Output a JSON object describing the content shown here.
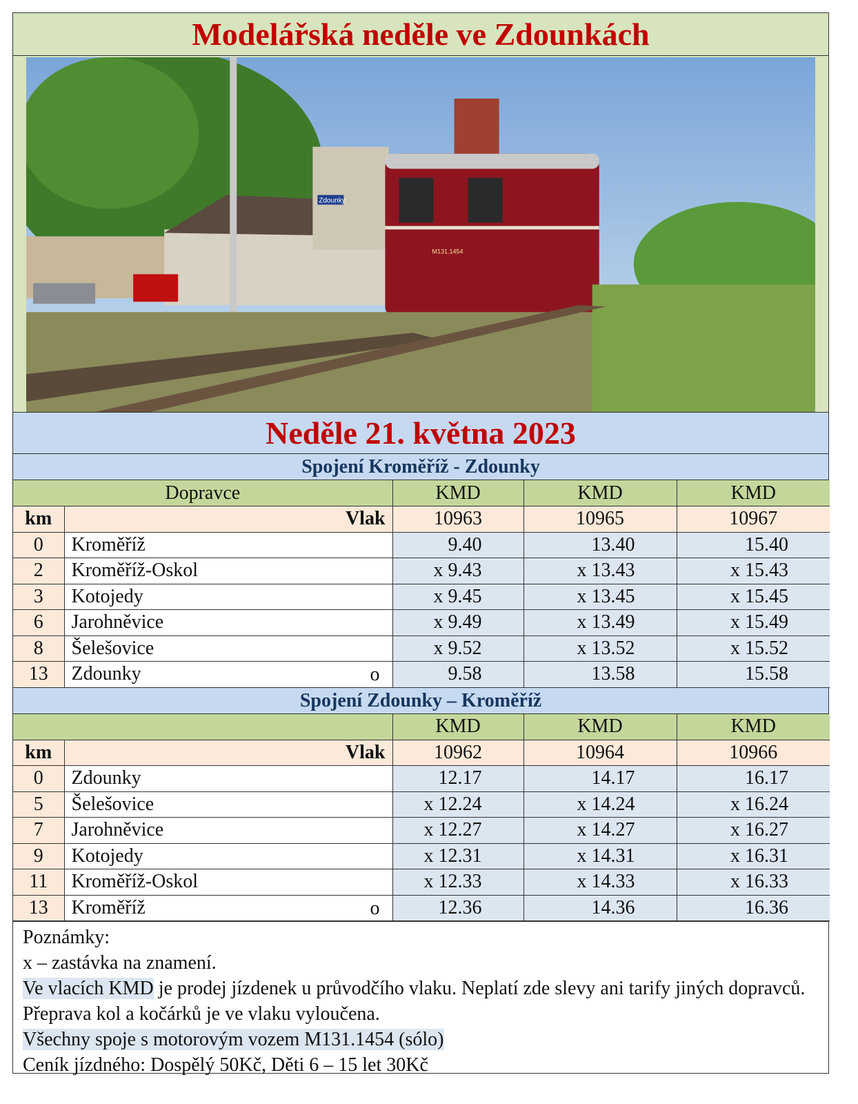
{
  "title": "Modelářská neděle ve Zdounkách",
  "photo": {
    "station_sign": "Zdounky",
    "locomotive_label": "M131.1454"
  },
  "date": "Neděle 21. května 2023",
  "colors": {
    "title_red": "#c00000",
    "subtitle_navy": "#17365d",
    "green": "#c4d79b",
    "peach": "#fde9d9",
    "blue": "#c6d9f1"
  },
  "section1": {
    "title": "Spojení Kroměříž - Zdounky",
    "carrier_label": "Dopravce",
    "km_label": "km",
    "train_label": "Vlak",
    "carriers": [
      "KMD",
      "KMD",
      "KMD"
    ],
    "trains": [
      "10963",
      "10965",
      "10967"
    ],
    "rows": [
      {
        "km": "0",
        "station": "Kroměříž",
        "mark": "",
        "times": [
          "9.40",
          "13.40",
          "15.40"
        ]
      },
      {
        "km": "2",
        "station": "Kroměříž-Oskol",
        "mark": "",
        "times": [
          "x 9.43",
          "x 13.43",
          "x 15.43"
        ]
      },
      {
        "km": "3",
        "station": "Kotojedy",
        "mark": "",
        "times": [
          "x 9.45",
          "x 13.45",
          "x 15.45"
        ]
      },
      {
        "km": "6",
        "station": "Jarohněvice",
        "mark": "",
        "times": [
          "x 9.49",
          "x 13.49",
          "x 15.49"
        ]
      },
      {
        "km": "8",
        "station": "Šelešovice",
        "mark": "",
        "times": [
          "x 9.52",
          "x 13.52",
          "x 15.52"
        ]
      },
      {
        "km": "13",
        "station": "Zdounky",
        "mark": "o",
        "times": [
          "9.58",
          "13.58",
          "15.58"
        ]
      }
    ]
  },
  "section2": {
    "title": "Spojení Zdounky – Kroměříž",
    "km_label": "km",
    "train_label": "Vlak",
    "carriers": [
      "KMD",
      "KMD",
      "KMD"
    ],
    "trains": [
      "10962",
      "10964",
      "10966"
    ],
    "rows": [
      {
        "km": "0",
        "station": "Zdounky",
        "mark": "",
        "times": [
          "12.17",
          "14.17",
          "16.17"
        ]
      },
      {
        "km": "5",
        "station": "Šelešovice",
        "mark": "",
        "times": [
          "x 12.24",
          "x 14.24",
          "x 16.24"
        ]
      },
      {
        "km": "7",
        "station": "Jarohněvice",
        "mark": "",
        "times": [
          "x 12.27",
          "x 14.27",
          "x 16.27"
        ]
      },
      {
        "km": "9",
        "station": "Kotojedy",
        "mark": "",
        "times": [
          "x 12.31",
          "x 14.31",
          "x 16.31"
        ]
      },
      {
        "km": "11",
        "station": "Kroměříž-Oskol",
        "mark": "",
        "times": [
          "x 12.33",
          "x 14.33",
          "x 16.33"
        ]
      },
      {
        "km": "13",
        "station": "Kroměříž",
        "mark": "o",
        "times": [
          "12.36",
          "14.36",
          "16.36"
        ]
      }
    ]
  },
  "notes": {
    "heading": "Poznámky:",
    "line1": "x – zastávka na znamení.",
    "line2_highlight": "Ve vlacích KMD",
    "line2_rest": " je prodej jízdenek u průvodčího vlaku. Neplatí zde slevy ani tarify jiných dopravců. Přeprava kol a kočárků je ve vlaku vyloučena.",
    "line3": "Všechny spoje s motorovým vozem M131.1454 (sólo)",
    "line4": "Ceník jízdného: Dospělý 50Kč, Děti 6 – 15 let 30Kč"
  }
}
